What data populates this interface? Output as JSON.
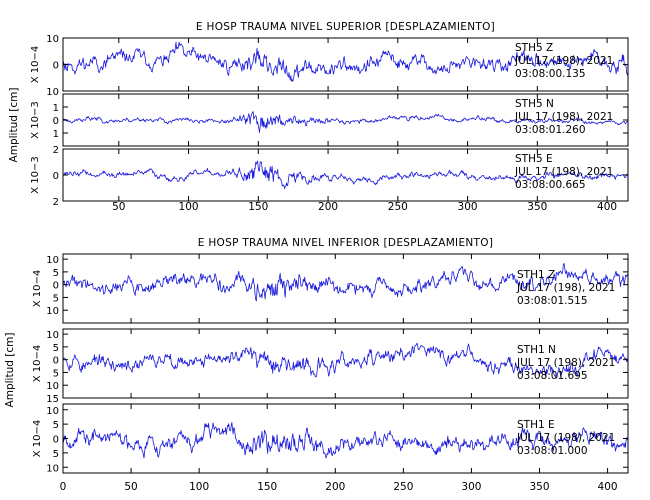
{
  "trace_color": "#1a1adc",
  "chart_data": [
    {
      "type": "line",
      "title": "E HOSP TRAUMA NIVEL SUPERIOR [DESPLAZAMIENTO]",
      "ylabel": "Amplitud [cm]",
      "xlim": [
        10,
        415
      ],
      "xticks": [
        50,
        100,
        150,
        200,
        250,
        300,
        350,
        400
      ],
      "series": [
        {
          "station": "STH5",
          "component": "Z",
          "date": "JUL 17 (198), 2021",
          "time": "03:08:00.135",
          "multiplier": "X 10−4",
          "ylim": [
            -10,
            10
          ],
          "yticks": [
            10,
            0,
            -10
          ],
          "yticklabels": [
            "10",
            "0",
            "10"
          ],
          "amplitude": 4.0,
          "seed": 11,
          "burst": 0.6
        },
        {
          "station": "STH5",
          "component": "N",
          "date": "JUL 17 (198), 2021",
          "time": "03:08:01.260",
          "multiplier": "X 10−3",
          "ylim": [
            -2,
            2
          ],
          "yticks": [
            1,
            0,
            -1
          ],
          "yticklabels": [
            "1",
            "0",
            "1"
          ],
          "amplitude": 0.25,
          "seed": 23,
          "burst": 4.5
        },
        {
          "station": "STH5",
          "component": "E",
          "date": "JUL 17 (198), 2021",
          "time": "03:08:00.665",
          "multiplier": "X 10−3",
          "ylim": [
            -2,
            2
          ],
          "yticks": [
            2,
            0,
            -2
          ],
          "yticklabels": [
            "2",
            "0",
            "2"
          ],
          "amplitude": 0.35,
          "seed": 37,
          "burst": 4.0
        }
      ]
    },
    {
      "type": "line",
      "title": "E HOSP TRAUMA NIVEL INFERIOR [DESPLAZAMIENTO]",
      "ylabel": "Amplitud [cm]",
      "xlim": [
        0,
        415
      ],
      "xticks": [
        0,
        50,
        100,
        150,
        200,
        250,
        300,
        350,
        400
      ],
      "series": [
        {
          "station": "STH1",
          "component": "Z",
          "date": "JUL 17 (198), 2021",
          "time": "03:08:01.515",
          "multiplier": "X 10−4",
          "ylim": [
            -15,
            12
          ],
          "yticks": [
            10,
            5,
            0,
            -5,
            -10
          ],
          "yticklabels": [
            "10",
            "5",
            "0",
            "5",
            "10"
          ],
          "amplitude": 4.0,
          "seed": 41,
          "burst": 1.2
        },
        {
          "station": "STH1",
          "component": "N",
          "date": "JUL 17 (198), 2021",
          "time": "03:08:01.695",
          "multiplier": "X 10−4",
          "ylim": [
            -15,
            12
          ],
          "yticks": [
            10,
            5,
            0,
            -5,
            -10,
            -15
          ],
          "yticklabels": [
            "10",
            "5",
            "0",
            "5",
            "10",
            "15"
          ],
          "amplitude": 4.0,
          "seed": 53,
          "burst": 1.0
        },
        {
          "station": "STH1",
          "component": "E",
          "date": "JUL 17 (198), 2021",
          "time": "03:08:01.000",
          "multiplier": "X 10−4",
          "ylim": [
            -12,
            12
          ],
          "yticks": [
            10,
            5,
            0,
            -5,
            -10
          ],
          "yticklabels": [
            "10",
            "5",
            "0",
            "5",
            "10"
          ],
          "amplitude": 4.0,
          "seed": 67,
          "burst": 1.0
        }
      ]
    }
  ]
}
